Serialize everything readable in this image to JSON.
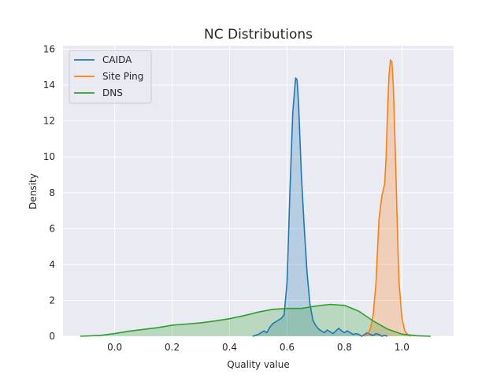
{
  "chart_data": {
    "type": "area",
    "title": "NC Distributions",
    "xlabel": "Quality value",
    "ylabel": "Density",
    "xlim": [
      -0.18,
      1.18
    ],
    "ylim": [
      0,
      16.2
    ],
    "xticks": [
      0.0,
      0.2,
      0.4,
      0.6,
      0.8,
      1.0
    ],
    "xtick_labels": [
      "0.0",
      "0.2",
      "0.4",
      "0.6",
      "0.8",
      "1.0"
    ],
    "yticks": [
      0,
      2,
      4,
      6,
      8,
      10,
      12,
      14,
      16
    ],
    "ytick_labels": [
      "0",
      "2",
      "4",
      "6",
      "8",
      "10",
      "12",
      "14",
      "16"
    ],
    "grid": true,
    "legend_position": "top-left",
    "series": [
      {
        "name": "CAIDA",
        "color": "#1f77b4",
        "x": [
          0.48,
          0.5,
          0.52,
          0.53,
          0.54,
          0.55,
          0.56,
          0.57,
          0.58,
          0.59,
          0.6,
          0.61,
          0.62,
          0.63,
          0.635,
          0.64,
          0.645,
          0.65,
          0.66,
          0.67,
          0.68,
          0.69,
          0.7,
          0.71,
          0.72,
          0.73,
          0.74,
          0.75,
          0.76,
          0.77,
          0.78,
          0.79,
          0.8,
          0.81,
          0.82,
          0.83,
          0.84,
          0.85,
          0.86,
          0.87,
          0.88,
          0.89,
          0.9,
          0.91,
          0.92,
          0.93,
          0.94,
          0.95
        ],
        "y": [
          0.0,
          0.1,
          0.3,
          0.2,
          0.5,
          0.7,
          0.8,
          0.9,
          1.0,
          1.2,
          3.0,
          8.0,
          12.5,
          14.4,
          14.3,
          13.0,
          11.0,
          9.0,
          6.0,
          3.5,
          1.8,
          0.9,
          0.6,
          0.4,
          0.3,
          0.2,
          0.35,
          0.25,
          0.15,
          0.3,
          0.45,
          0.3,
          0.2,
          0.3,
          0.2,
          0.1,
          0.15,
          0.1,
          0.0,
          0.1,
          0.2,
          0.1,
          0.05,
          0.15,
          0.1,
          0.0,
          0.05,
          0.0
        ]
      },
      {
        "name": "Site Ping",
        "color": "#ff7f0e",
        "x": [
          0.87,
          0.88,
          0.89,
          0.9,
          0.91,
          0.92,
          0.93,
          0.94,
          0.945,
          0.95,
          0.955,
          0.96,
          0.965,
          0.97,
          0.975,
          0.98,
          0.985,
          0.99,
          1.0,
          1.01,
          1.02,
          1.03
        ],
        "y": [
          0.0,
          0.1,
          0.4,
          1.2,
          3.0,
          6.5,
          7.8,
          8.5,
          10.0,
          12.5,
          14.5,
          15.4,
          15.3,
          14.0,
          11.5,
          8.5,
          5.5,
          3.0,
          1.0,
          0.3,
          0.1,
          0.0
        ]
      },
      {
        "name": "DNS",
        "color": "#2ca02c",
        "x": [
          -0.12,
          -0.05,
          0.0,
          0.05,
          0.1,
          0.15,
          0.2,
          0.25,
          0.3,
          0.35,
          0.4,
          0.45,
          0.5,
          0.55,
          0.6,
          0.65,
          0.7,
          0.75,
          0.8,
          0.85,
          0.9,
          0.95,
          1.0,
          1.05,
          1.1
        ],
        "y": [
          0.0,
          0.05,
          0.15,
          0.28,
          0.38,
          0.48,
          0.62,
          0.68,
          0.75,
          0.85,
          0.98,
          1.15,
          1.35,
          1.5,
          1.55,
          1.55,
          1.68,
          1.78,
          1.72,
          1.4,
          0.85,
          0.4,
          0.12,
          0.03,
          0.0
        ]
      }
    ]
  }
}
